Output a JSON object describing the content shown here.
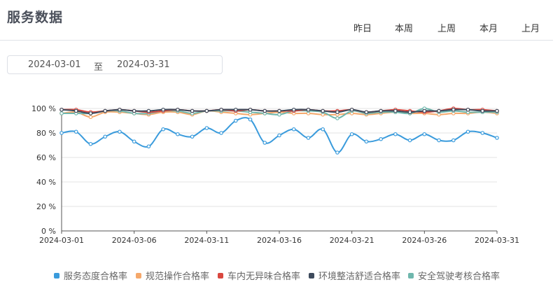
{
  "header": {
    "title": "服务数据",
    "periods": [
      "昨日",
      "本周",
      "上周",
      "本月",
      "上月"
    ]
  },
  "date_range": {
    "start": "2024-03-01",
    "separator": "至",
    "end": "2024-03-31"
  },
  "chart_data": {
    "type": "line",
    "x": [
      "2024-03-01",
      "2024-03-02",
      "2024-03-03",
      "2024-03-04",
      "2024-03-05",
      "2024-03-06",
      "2024-03-07",
      "2024-03-08",
      "2024-03-09",
      "2024-03-10",
      "2024-03-11",
      "2024-03-12",
      "2024-03-13",
      "2024-03-14",
      "2024-03-15",
      "2024-03-16",
      "2024-03-17",
      "2024-03-18",
      "2024-03-19",
      "2024-03-20",
      "2024-03-21",
      "2024-03-22",
      "2024-03-23",
      "2024-03-24",
      "2024-03-25",
      "2024-03-26",
      "2024-03-27",
      "2024-03-28",
      "2024-03-29",
      "2024-03-30",
      "2024-03-31"
    ],
    "x_ticks": [
      "2024-03-01",
      "2024-03-06",
      "2024-03-11",
      "2024-03-16",
      "2024-03-21",
      "2024-03-26",
      "2024-03-31"
    ],
    "y_ticks": [
      "0 %",
      "20 %",
      "40 %",
      "60 %",
      "80 %",
      "100 %"
    ],
    "ylim": [
      0,
      100
    ],
    "grid": true,
    "legend_position": "bottom",
    "series": [
      {
        "name": "服务态度合格率",
        "color": "#3a9bdc",
        "values": [
          80,
          81,
          71,
          77,
          81,
          73,
          69,
          83,
          79,
          77,
          84,
          80,
          90,
          91,
          72,
          78,
          83,
          76,
          83,
          64,
          79,
          73,
          75,
          79,
          74,
          79,
          74,
          74,
          81,
          80,
          76
        ]
      },
      {
        "name": "规范操作合格率",
        "color": "#f5a86b",
        "values": [
          96,
          97,
          93,
          97,
          97,
          96,
          95,
          97,
          97,
          95,
          98,
          97,
          96,
          95,
          96,
          97,
          96,
          96,
          95,
          95,
          96,
          95,
          96,
          97,
          96,
          96,
          95,
          96,
          96,
          97,
          96
        ]
      },
      {
        "name": "车内无异味合格率",
        "color": "#d9473f",
        "values": [
          99,
          99,
          97,
          98,
          99,
          98,
          97,
          98,
          99,
          98,
          98,
          99,
          98,
          99,
          98,
          98,
          98,
          99,
          98,
          98,
          99,
          97,
          98,
          99,
          98,
          97,
          98,
          100,
          99,
          99,
          98
        ]
      },
      {
        "name": "环境整洁舒适合格率",
        "color": "#3d4a5c",
        "values": [
          99,
          98,
          96,
          98,
          99,
          98,
          98,
          99,
          99,
          98,
          98,
          99,
          99,
          99,
          98,
          98,
          99,
          99,
          98,
          97,
          99,
          97,
          98,
          98,
          97,
          98,
          98,
          99,
          99,
          98,
          98
        ]
      },
      {
        "name": "安全驾驶考核合格率",
        "color": "#6fb7ad",
        "values": [
          96,
          96,
          96,
          98,
          98,
          96,
          96,
          98,
          98,
          96,
          98,
          98,
          98,
          97,
          96,
          95,
          98,
          98,
          97,
          92,
          98,
          96,
          97,
          97,
          96,
          100,
          97,
          98,
          97,
          97,
          97
        ]
      }
    ]
  }
}
